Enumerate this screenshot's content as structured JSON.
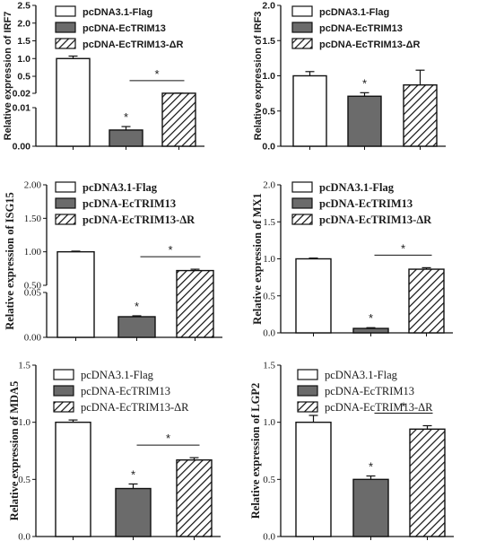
{
  "legend": [
    "pcDNA3.1-Flag",
    "pcDNA-EcTRIM13",
    "pcDNA-EcTRIM13-ΔR"
  ],
  "colors": {
    "control": "#ffffff",
    "trim13": "#6b6b6b",
    "hatch": "#ffffff",
    "stroke": "#111111"
  },
  "star_label": "*",
  "chart_data": [
    {
      "type": "bar",
      "ylabel": "Relative expression of IRF7",
      "categories": [
        "pcDNA3.1-Flag",
        "pcDNA-EcTRIM13",
        "pcDNA-EcTRIM13-ΔR"
      ],
      "values": [
        1.0,
        0.0042,
        0.022
      ],
      "errors": [
        0.07,
        0.0009,
        0.001
      ],
      "axis_break": {
        "lower": [
          0,
          0.01
        ],
        "upper": [
          0.02,
          2.5
        ]
      },
      "ticks": [
        "0.00",
        "0.01",
        "0.02",
        "0.5",
        "1.0",
        "1.5",
        "2.0",
        "2.5"
      ],
      "significance": {
        "bar_star": 1,
        "bracket": [
          1,
          2
        ]
      }
    },
    {
      "type": "bar",
      "ylabel": "Relative expression of IRF3",
      "categories": [
        "pcDNA3.1-Flag",
        "pcDNA-EcTRIM13",
        "pcDNA-EcTRIM13-ΔR"
      ],
      "values": [
        1.0,
        0.71,
        0.87
      ],
      "errors": [
        0.06,
        0.05,
        0.21
      ],
      "ylim": [
        0,
        2.0
      ],
      "ticks": [
        "0.0",
        "0.5",
        "1.0",
        "1.5",
        "2.0"
      ],
      "significance": {
        "bar_star": 1
      }
    },
    {
      "type": "bar",
      "ylabel": "Relative expression of ISG15",
      "categories": [
        "pcDNA3.1-Flag",
        "pcDNA-EcTRIM13",
        "pcDNA-EcTRIM13-ΔR"
      ],
      "values": [
        1.0,
        0.023,
        0.72
      ],
      "errors": [
        0.01,
        0.001,
        0.02
      ],
      "axis_break": {
        "lower": [
          0,
          0.05
        ],
        "upper": [
          0.5,
          2.0
        ]
      },
      "ticks": [
        "0.00",
        "0.05",
        "0.50",
        "1.00",
        "1.50",
        "2.00"
      ],
      "significance": {
        "bar_star": 1,
        "bracket": [
          1,
          2
        ]
      }
    },
    {
      "type": "bar",
      "ylabel": "Relative expression of MX1",
      "categories": [
        "pcDNA3.1-Flag",
        "pcDNA-EcTRIM13",
        "pcDNA-EcTRIM13-ΔR"
      ],
      "values": [
        1.0,
        0.06,
        0.86
      ],
      "errors": [
        0.01,
        0.01,
        0.02
      ],
      "ylim": [
        0,
        2.0
      ],
      "ticks": [
        "0.0",
        "0.5",
        "1.0",
        "1.5",
        "2.0"
      ],
      "significance": {
        "bar_star": 1,
        "bracket": [
          1,
          2
        ]
      }
    },
    {
      "type": "bar",
      "ylabel": "Relative expression of MDA5",
      "categories": [
        "pcDNA3.1-Flag",
        "pcDNA-EcTRIM13",
        "pcDNA-EcTRIM13-ΔR"
      ],
      "values": [
        1.0,
        0.42,
        0.67
      ],
      "errors": [
        0.02,
        0.04,
        0.02
      ],
      "ylim": [
        0,
        1.5
      ],
      "ticks": [
        "0.0",
        "0.5",
        "1.0",
        "1.5"
      ],
      "significance": {
        "bar_star": 1,
        "bracket": [
          1,
          2
        ]
      }
    },
    {
      "type": "bar",
      "ylabel": "Relative expression of LGP2",
      "categories": [
        "pcDNA3.1-Flag",
        "pcDNA-EcTRIM13",
        "pcDNA-EcTRIM13-ΔR"
      ],
      "values": [
        1.0,
        0.5,
        0.94
      ],
      "errors": [
        0.06,
        0.03,
        0.03
      ],
      "ylim": [
        0,
        1.5
      ],
      "ticks": [
        "0.0",
        "0.5",
        "1.0",
        "1.5"
      ],
      "significance": {
        "bar_star": 1,
        "bracket": [
          1,
          2
        ]
      }
    }
  ]
}
